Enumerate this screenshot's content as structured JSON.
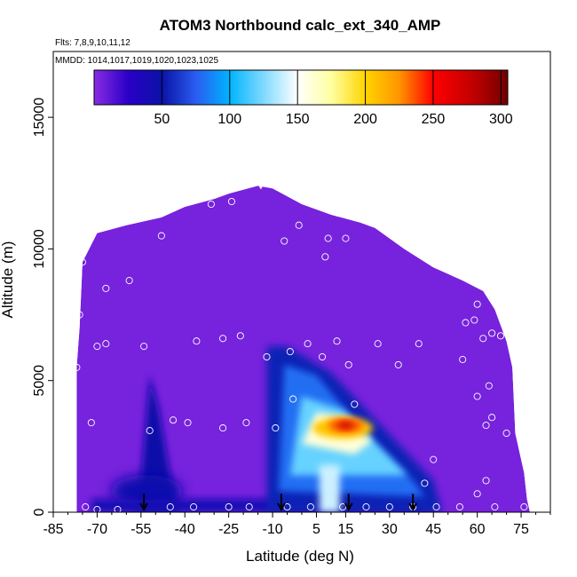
{
  "chart_data": {
    "type": "heatmap",
    "title": "ATOM3 Northbound calc_ext_340_AMP",
    "flights_label": "Flts: 7,8,9,10,11,12",
    "mmdd_label": "MMDD: 1014,1017,1019,1020,1023,1025",
    "xlabel": "Latitude (deg N)",
    "ylabel": "Altitude (m)",
    "xlim": [
      -85,
      85
    ],
    "ylim": [
      0,
      17500
    ],
    "x_ticks": [
      -85,
      -70,
      -55,
      -40,
      -25,
      -10,
      5,
      15,
      30,
      45,
      60,
      75
    ],
    "x_tick_labels": [
      "-85",
      "-70",
      "-55",
      "-40",
      "-25",
      "-10",
      "5",
      "15",
      "30",
      "45",
      "60",
      "75"
    ],
    "y_ticks": [
      0,
      5000,
      10000,
      15000
    ],
    "y_tick_labels": [
      "0",
      "5000",
      "10000",
      "15000"
    ],
    "colorbar": {
      "range": [
        0,
        305
      ],
      "ticks": [
        50,
        100,
        150,
        200,
        250,
        300
      ],
      "tick_labels": [
        "50",
        "100",
        "150",
        "200",
        "250",
        "300"
      ],
      "stops": [
        {
          "v": 0,
          "color": "#8a2be2"
        },
        {
          "v": 25,
          "color": "#2a00c8"
        },
        {
          "v": 50,
          "color": "#0a12a6"
        },
        {
          "v": 75,
          "color": "#2a5cf0"
        },
        {
          "v": 100,
          "color": "#00b4ff"
        },
        {
          "v": 150,
          "color": "#ffffff"
        },
        {
          "v": 175,
          "color": "#ffffa0"
        },
        {
          "v": 200,
          "color": "#ffd400"
        },
        {
          "v": 225,
          "color": "#ff9500"
        },
        {
          "v": 250,
          "color": "#ff0000"
        },
        {
          "v": 280,
          "color": "#c00000"
        },
        {
          "v": 305,
          "color": "#6e0000"
        }
      ]
    },
    "profile_markers_lat": [
      -54,
      -7,
      16,
      38
    ],
    "top_marker": {
      "lat": -14,
      "alt": 12700
    },
    "envelope": [
      [
        -77,
        5500
      ],
      [
        -76,
        7000
      ],
      [
        -75,
        9500
      ],
      [
        -70,
        10600
      ],
      [
        -60,
        10900
      ],
      [
        -48,
        11200
      ],
      [
        -40,
        11600
      ],
      [
        -30,
        11900
      ],
      [
        -25,
        12100
      ],
      [
        -15,
        12400
      ],
      [
        -10,
        12300
      ],
      [
        0,
        11700
      ],
      [
        10,
        11300
      ],
      [
        20,
        11000
      ],
      [
        25,
        10800
      ],
      [
        35,
        10000
      ],
      [
        45,
        9300
      ],
      [
        55,
        8800
      ],
      [
        62,
        8400
      ],
      [
        66,
        7700
      ],
      [
        70,
        6500
      ],
      [
        72,
        5500
      ],
      [
        73,
        3000
      ],
      [
        76,
        1500
      ],
      [
        77,
        500
      ],
      [
        78,
        0
      ]
    ],
    "samples": [
      [
        -77,
        5500
      ],
      [
        -76,
        7500
      ],
      [
        -75,
        9500
      ],
      [
        -73,
        10500
      ],
      [
        -70,
        6300
      ],
      [
        -67,
        8500
      ],
      [
        -67,
        6400
      ],
      [
        -59,
        8800
      ],
      [
        -54,
        6300
      ],
      [
        -52,
        3100
      ],
      [
        -48,
        10500
      ],
      [
        -44,
        3500
      ],
      [
        -39,
        3400
      ],
      [
        -36,
        6500
      ],
      [
        -31,
        11700
      ],
      [
        -27,
        3200
      ],
      [
        -27,
        6600
      ],
      [
        -24,
        11800
      ],
      [
        -21,
        6700
      ],
      [
        -19,
        3400
      ],
      [
        -12,
        5900
      ],
      [
        -9,
        3200
      ],
      [
        -6,
        10300
      ],
      [
        -4,
        6100
      ],
      [
        -3,
        4300
      ],
      [
        -1,
        10900
      ],
      [
        2,
        6400
      ],
      [
        7,
        5900
      ],
      [
        8,
        9700
      ],
      [
        9,
        10400
      ],
      [
        12,
        6500
      ],
      [
        15,
        10400
      ],
      [
        16,
        5600
      ],
      [
        18,
        4100
      ],
      [
        26,
        6400
      ],
      [
        33,
        5600
      ],
      [
        36,
        10400
      ],
      [
        40,
        6400
      ],
      [
        42,
        1100
      ],
      [
        45,
        2000
      ],
      [
        55,
        5800
      ],
      [
        56,
        7200
      ],
      [
        59,
        7300
      ],
      [
        60,
        7900
      ],
      [
        60,
        4400
      ],
      [
        62,
        6600
      ],
      [
        63,
        3300
      ],
      [
        64,
        8500
      ],
      [
        64,
        4800
      ],
      [
        65,
        6800
      ],
      [
        65,
        3600
      ],
      [
        68,
        6700
      ],
      [
        70,
        3000
      ],
      [
        -74,
        200
      ],
      [
        -72,
        3400
      ],
      [
        -70,
        100
      ],
      [
        -63,
        100
      ],
      [
        -45,
        200
      ],
      [
        -37,
        200
      ],
      [
        -25,
        200
      ],
      [
        -18,
        200
      ],
      [
        -5,
        200
      ],
      [
        3,
        200
      ],
      [
        14,
        200
      ],
      [
        22,
        200
      ],
      [
        30,
        200
      ],
      [
        38,
        200
      ],
      [
        46,
        200
      ],
      [
        54,
        200
      ],
      [
        60,
        700
      ],
      [
        63,
        1200
      ],
      [
        66,
        200
      ],
      [
        76,
        200
      ]
    ]
  }
}
